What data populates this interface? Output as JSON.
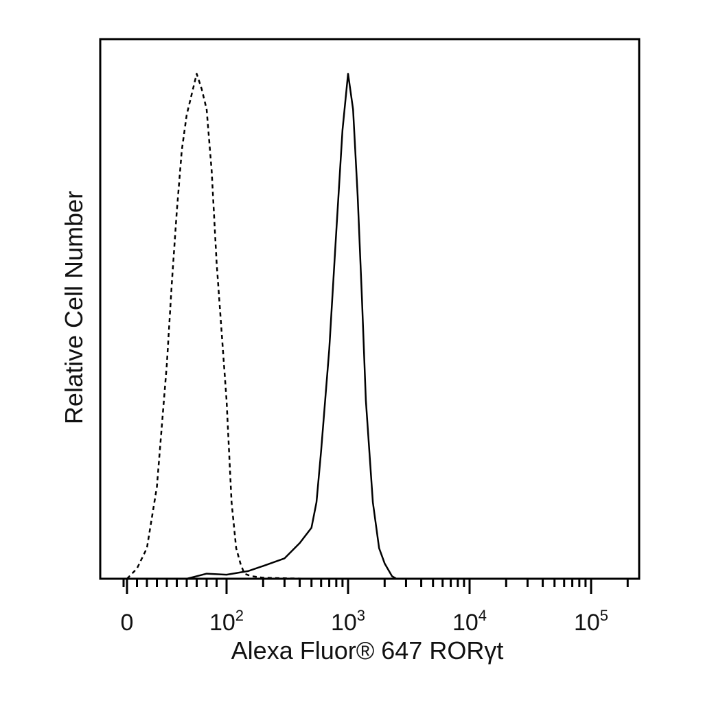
{
  "chart_data": {
    "type": "line",
    "xlabel": "Alexa Fluor® 647  RORγt",
    "ylabel": "Relative Cell Number",
    "x_scale": "biexponential",
    "xlim": [
      -20,
      250000
    ],
    "ylim": [
      0,
      100
    ],
    "grid": false,
    "legend": "none",
    "x_ticks": [
      {
        "value": 0,
        "base": "0",
        "exp": ""
      },
      {
        "value": 100,
        "base": "10",
        "exp": "2"
      },
      {
        "value": 1000,
        "base": "10",
        "exp": "3"
      },
      {
        "value": 10000,
        "base": "10",
        "exp": "4"
      },
      {
        "value": 100000,
        "base": "10",
        "exp": "5"
      }
    ],
    "series": [
      {
        "style": "dashed",
        "x": [
          0,
          10,
          20,
          30,
          40,
          45,
          50,
          55,
          60,
          65,
          70,
          75,
          80,
          85,
          90,
          100,
          110,
          120,
          130,
          140,
          160,
          200,
          300,
          500,
          1000,
          2000,
          10000,
          100000
        ],
        "y": [
          0,
          2,
          6,
          18,
          42,
          58,
          72,
          84,
          91,
          95,
          99,
          96,
          92,
          80,
          62,
          35,
          15,
          6,
          3,
          1,
          0.5,
          0.2,
          0.1,
          0,
          0,
          0,
          0,
          0
        ]
      },
      {
        "style": "solid",
        "x": [
          0,
          60,
          70,
          80,
          100,
          150,
          200,
          300,
          400,
          500,
          550,
          600,
          700,
          800,
          900,
          1000,
          1100,
          1200,
          1300,
          1400,
          1600,
          1800,
          2000,
          2300,
          2500,
          3000,
          10000,
          100000
        ],
        "y": [
          0,
          0,
          0.5,
          1,
          0.8,
          1.5,
          2.5,
          4,
          7,
          10,
          15,
          25,
          45,
          68,
          88,
          99,
          92,
          75,
          55,
          35,
          15,
          6,
          3,
          0.5,
          0,
          0,
          0,
          0
        ]
      }
    ]
  }
}
